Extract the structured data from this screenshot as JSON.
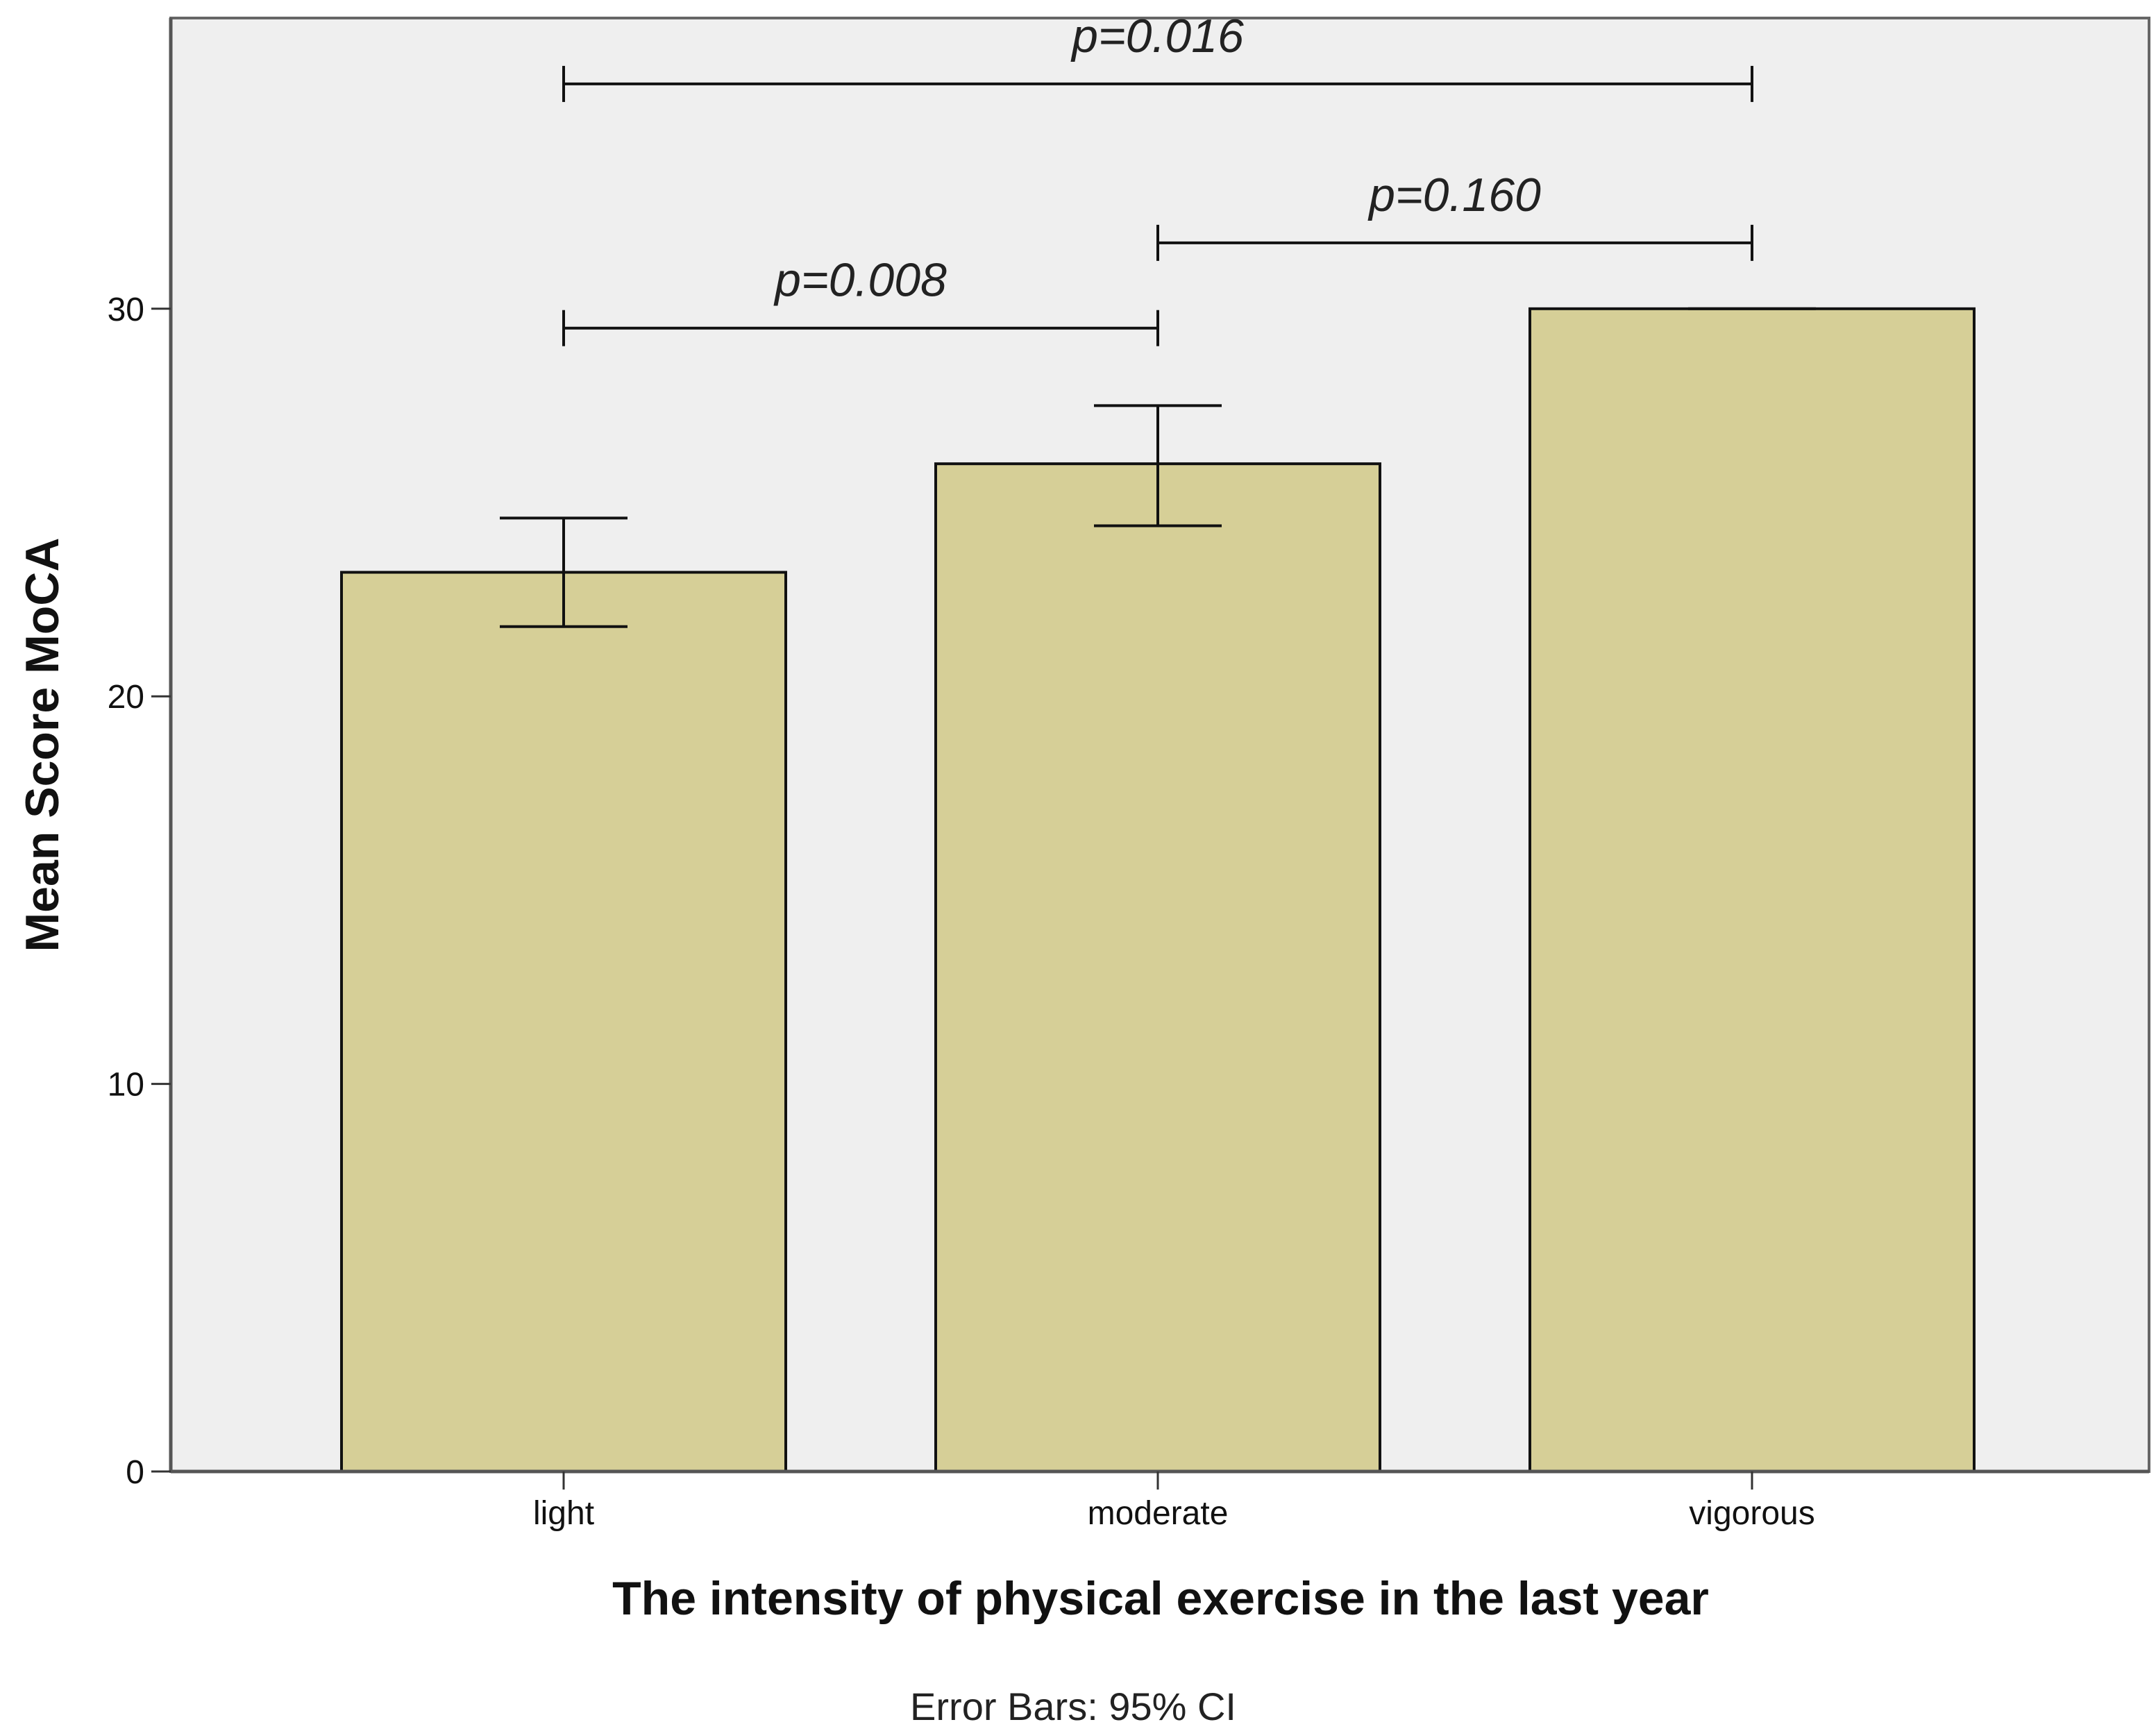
{
  "chart_data": {
    "type": "bar",
    "title": "",
    "categories": [
      "light",
      "moderate",
      "vigorous"
    ],
    "values": [
      23.2,
      26.0,
      30.0
    ],
    "ci_lower": [
      21.8,
      24.4,
      30.0
    ],
    "ci_upper": [
      24.6,
      27.5,
      30.0
    ],
    "xlabel": "The intensity of physical exercise in the last year",
    "ylabel": "Mean Score MoCA",
    "ylim": [
      0,
      37.5
    ],
    "yticks": [
      0,
      10,
      20,
      30
    ],
    "grid": false,
    "footnote": "Error Bars: 95% CI",
    "bar_color": "#d6cf97",
    "plot_background": "#efefef",
    "comparisons": [
      {
        "from": "light",
        "to": "vigorous",
        "label": "p=0.016",
        "level": 35.8
      },
      {
        "from": "moderate",
        "to": "vigorous",
        "label": "p=0.160",
        "level": 31.7
      },
      {
        "from": "light",
        "to": "moderate",
        "label": "p=0.008",
        "level": 29.5
      }
    ]
  }
}
